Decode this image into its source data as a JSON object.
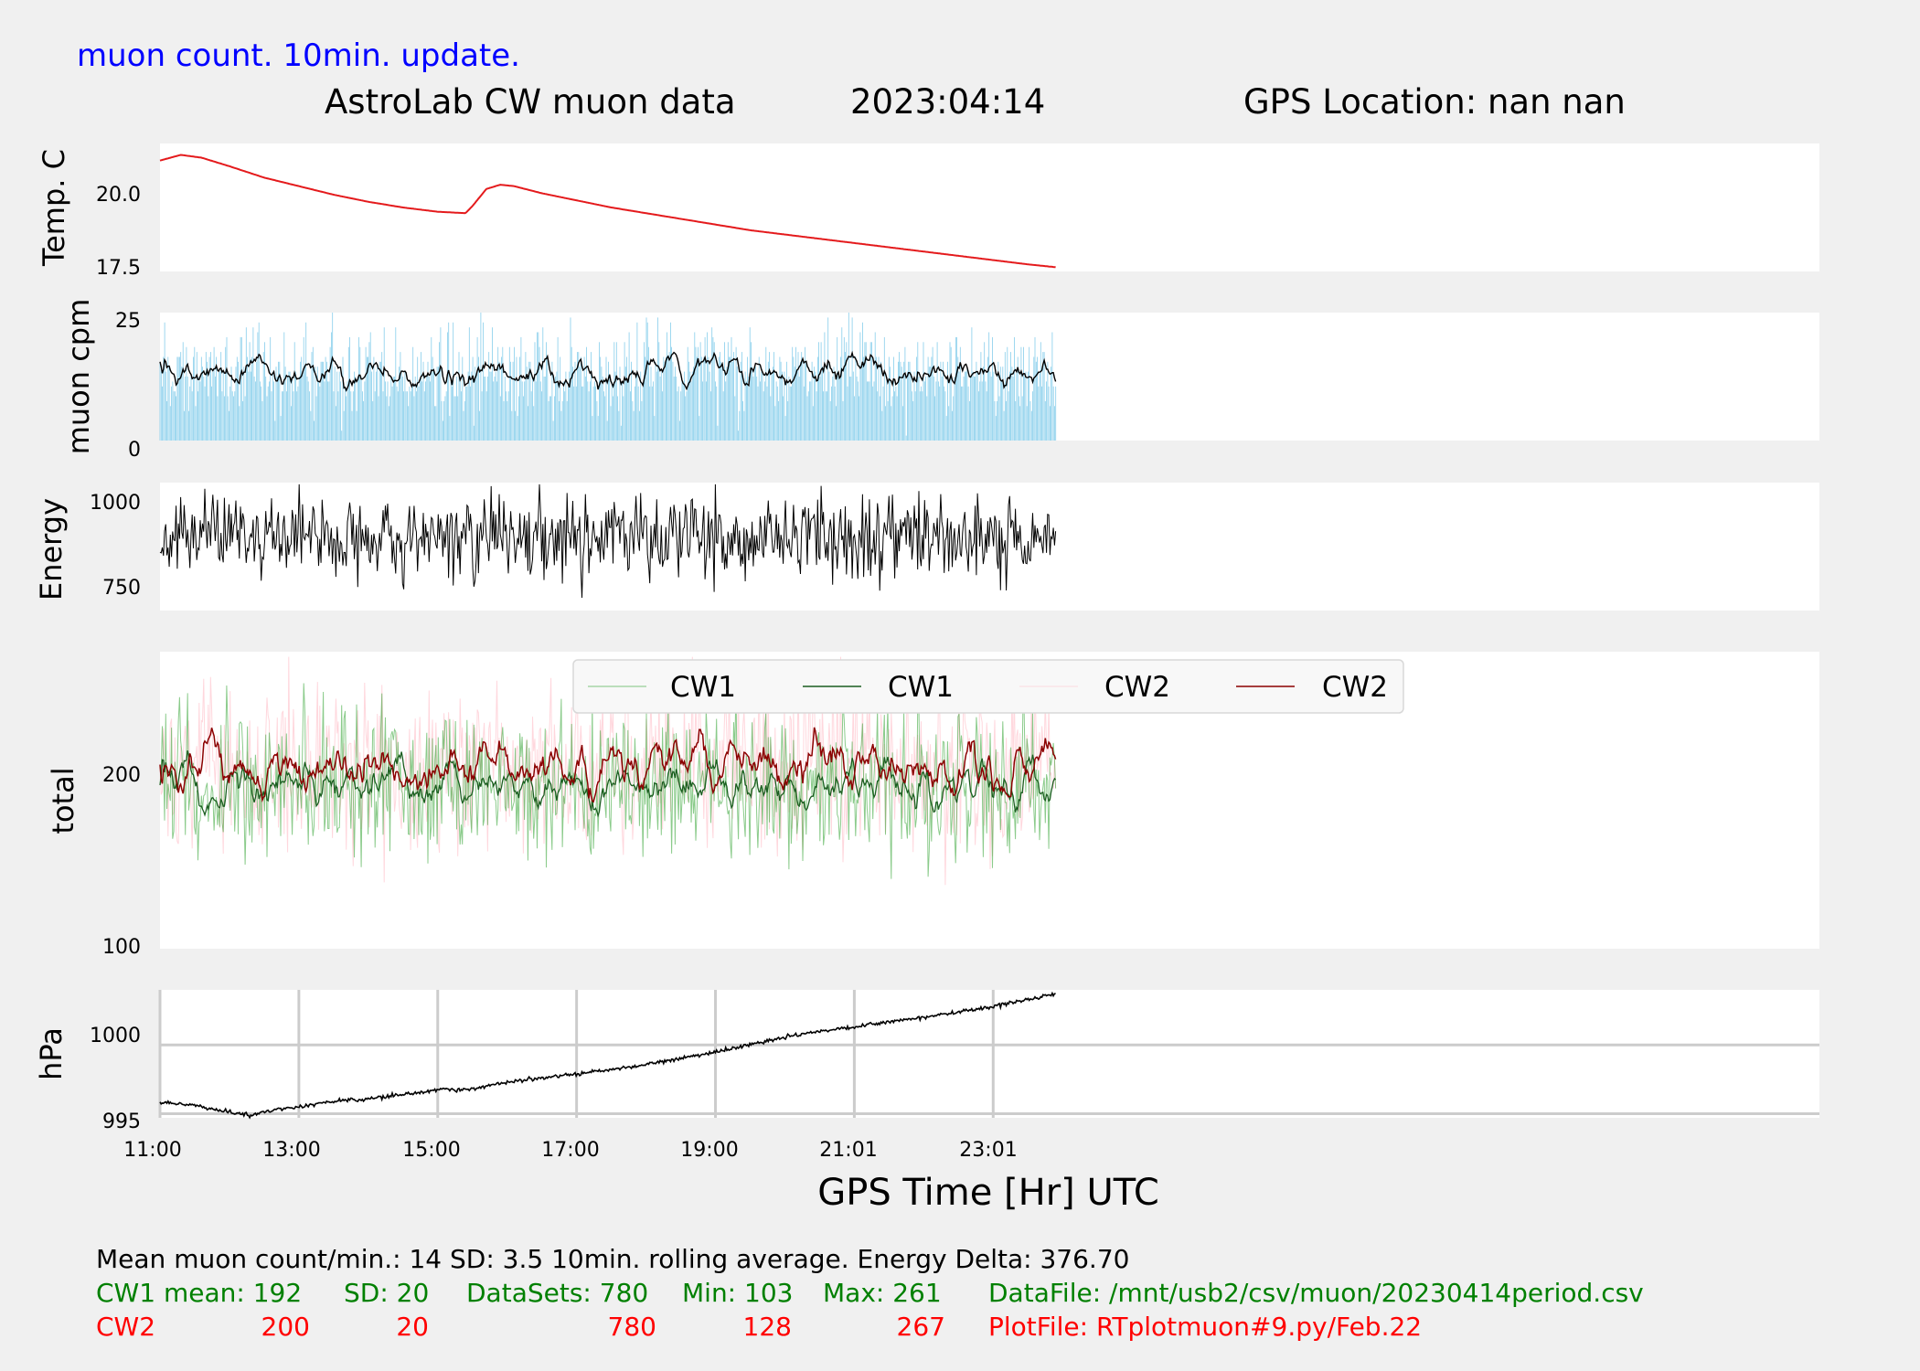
{
  "header": {
    "update_note": "muon count.  10min. update.",
    "title": "AstroLab CW muon data",
    "date": "2023:04:14",
    "gps_location": "GPS Location: nan   nan"
  },
  "colors": {
    "background": "#f0f0f0",
    "panel": "#ffffff",
    "temp_line": "#e41a1c",
    "muon_bars": "#87ceeb",
    "rolling_avg": "#000000",
    "cw1_raw": "#2ca02c",
    "cw1_avg": "#1b5e20",
    "cw2_raw": "#ffb6c1",
    "cw2_avg": "#8b0000",
    "note_blue": "#0000ff",
    "footer_green": "#008000",
    "footer_red": "#ff0000"
  },
  "chart_data": [
    {
      "type": "line",
      "name": "temperature",
      "ylabel": "Temp. C",
      "yticks": [
        "20.0",
        "17.5"
      ],
      "ylim": [
        17.3,
        21.8
      ],
      "x_hours": [
        11.0,
        11.3,
        11.6,
        12.0,
        12.5,
        13.0,
        13.5,
        14.0,
        14.5,
        15.0,
        15.4,
        15.5,
        15.7,
        15.9,
        16.1,
        16.5,
        17.0,
        17.5,
        18.0,
        18.5,
        19.0,
        19.5,
        20.0,
        20.5,
        21.0,
        21.5,
        22.0,
        22.5,
        23.0,
        23.5,
        23.9
      ],
      "y": [
        21.2,
        21.4,
        21.3,
        21.0,
        20.6,
        20.3,
        20.0,
        19.75,
        19.55,
        19.4,
        19.35,
        19.6,
        20.2,
        20.35,
        20.3,
        20.05,
        19.8,
        19.55,
        19.35,
        19.15,
        18.95,
        18.75,
        18.6,
        18.45,
        18.3,
        18.15,
        18.0,
        17.85,
        17.7,
        17.55,
        17.45
      ]
    },
    {
      "type": "bar",
      "name": "muon counts per minute",
      "ylabel": "muon cpm",
      "yticks": [
        "25",
        "0"
      ],
      "ylim": [
        0,
        26
      ],
      "mean": 14,
      "sd": 3.5,
      "rolling_window": "10min.",
      "x_range_hours": [
        11.0,
        23.9
      ]
    },
    {
      "type": "line",
      "name": "energy",
      "ylabel": "Energy",
      "yticks": [
        "1000",
        "750"
      ],
      "ylim": [
        690,
        1060
      ],
      "mean": 900,
      "min": 703,
      "max": 1055,
      "delta": 376.7
    },
    {
      "type": "line",
      "name": "total",
      "ylabel": "total",
      "yticks": [
        "200",
        "100"
      ],
      "ylim": [
        97,
        270
      ],
      "legend": [
        "CW1",
        "CW1",
        "CW2",
        "CW2"
      ],
      "legend_position": "top-center",
      "series": [
        {
          "name": "CW1",
          "mean": 192,
          "sd": 20,
          "datasets": 780,
          "min": 103,
          "max": 261
        },
        {
          "name": "CW2",
          "mean": 200,
          "sd": 20,
          "datasets": 780,
          "min": 128,
          "max": 267
        }
      ]
    },
    {
      "type": "line",
      "name": "pressure",
      "ylabel": "hPa",
      "yticks": [
        "1000",
        "995"
      ],
      "ylim": [
        994.7,
        1004.0
      ],
      "grid": true,
      "x_hours": [
        11.0,
        11.5,
        12.0,
        12.3,
        12.6,
        13.0,
        13.5,
        14.0,
        14.5,
        15.0,
        15.5,
        16.0,
        16.5,
        17.0,
        17.5,
        18.0,
        18.5,
        19.0,
        19.5,
        20.0,
        20.5,
        21.0,
        21.5,
        22.0,
        22.5,
        23.0,
        23.5,
        23.9
      ],
      "y": [
        995.8,
        995.6,
        995.1,
        994.9,
        995.2,
        995.5,
        995.9,
        996.1,
        996.4,
        996.7,
        996.8,
        997.3,
        997.6,
        997.9,
        998.2,
        998.6,
        999.0,
        999.5,
        1000.0,
        1000.6,
        1001.0,
        1001.3,
        1001.7,
        1002.0,
        1002.4,
        1002.8,
        1003.3,
        1003.7
      ]
    }
  ],
  "x_axis": {
    "label": "GPS Time  [Hr] UTC",
    "ticks": [
      "11:00",
      "13:00",
      "15:00",
      "17:00",
      "19:00",
      "21:01",
      "23:01"
    ],
    "tick_hours": [
      11.0,
      13.0,
      15.0,
      17.0,
      19.0,
      21.0,
      23.0
    ],
    "range_hours": [
      11.0,
      34.9
    ]
  },
  "footer": {
    "line1": "Mean muon count/min.: 14  SD: 3.5   10min. rolling average.    Energy Delta:  376.70",
    "cw1": {
      "label": "CW1 mean: 192",
      "sd": "SD: 20",
      "datasets": "DataSets: 780",
      "min": "Min: 103",
      "max": "Max: 261",
      "file": "DataFile: /mnt/usb2/csv/muon/20230414period.csv"
    },
    "cw2": {
      "label": "CW2",
      "mean": "200",
      "sd": "20",
      "datasets": "780",
      "min": "128",
      "max": "267",
      "file": "PlotFile: RTplotmuon#9.py/Feb.22"
    }
  }
}
